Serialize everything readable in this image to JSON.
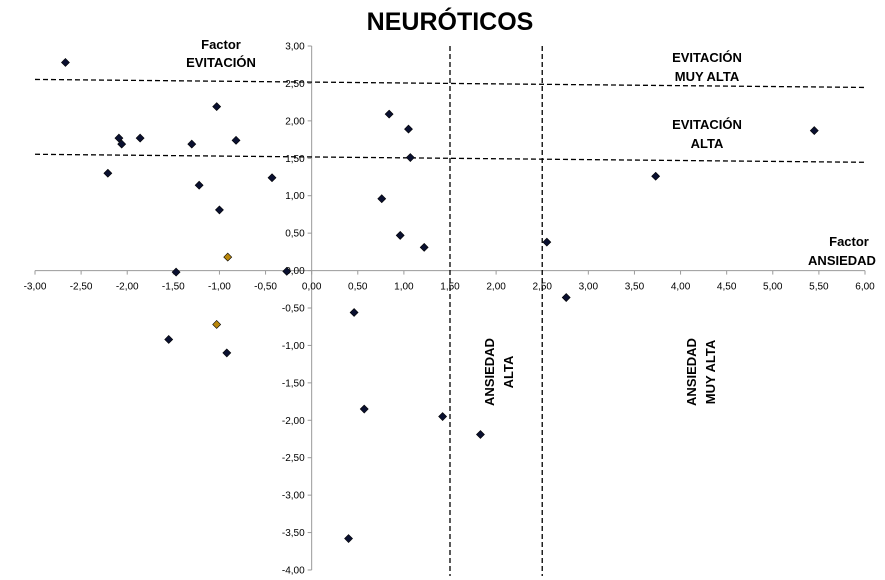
{
  "chart_data": {
    "type": "scatter",
    "title": "NEURÓTICOS",
    "xlim": [
      -3.0,
      6.0
    ],
    "ylim": [
      -4.0,
      3.0
    ],
    "x_ticks": [
      "-3,00",
      "-2,50",
      "-2,00",
      "-1,50",
      "-1,00",
      "-0,50",
      "0,00",
      "0,50",
      "1,00",
      "1,50",
      "2,00",
      "2,50",
      "3,00",
      "3,50",
      "4,00",
      "4,50",
      "5,00",
      "5,50",
      "6,00"
    ],
    "y_ticks": [
      "3,00",
      "2,50",
      "2,00",
      "1,50",
      "1,00",
      "0,50",
      "0,00",
      "-0,50",
      "-1,00",
      "-1,50",
      "-2,00",
      "-2,50",
      "-3,00",
      "-3,50",
      "-4,00"
    ],
    "grid": false,
    "reference_lines": {
      "horizontal": [
        1.5,
        2.5
      ],
      "vertical": [
        1.5,
        2.5
      ]
    },
    "annotations": {
      "x_axis_label": [
        "Factor",
        "ANSIEDAD"
      ],
      "y_axis_label": [
        "Factor",
        "EVITACIÓN"
      ],
      "avoidance_very_high": [
        "EVITACIÓN",
        "MUY ALTA"
      ],
      "avoidance_high": [
        "EVITACIÓN",
        "ALTA"
      ],
      "anxiety_high": [
        "ANSIEDAD",
        "ALTA"
      ],
      "anxiety_very_high": [
        "ANSIEDAD",
        "MUY ALTA"
      ]
    },
    "colors": {
      "marker": "#0a1030",
      "highlight_marker": "#b8860b",
      "reference_line": "#000000",
      "axis": "#9a9a9a"
    },
    "points": [
      {
        "x": -2.67,
        "y": 2.78
      },
      {
        "x": -2.09,
        "y": 1.77
      },
      {
        "x": -2.06,
        "y": 1.69
      },
      {
        "x": -1.86,
        "y": 1.77
      },
      {
        "x": -2.21,
        "y": 1.3
      },
      {
        "x": -1.3,
        "y": 1.69
      },
      {
        "x": -1.03,
        "y": 2.19
      },
      {
        "x": -0.82,
        "y": 1.74
      },
      {
        "x": -1.22,
        "y": 1.14
      },
      {
        "x": -1.0,
        "y": 0.81
      },
      {
        "x": -0.43,
        "y": 1.24
      },
      {
        "x": -0.91,
        "y": 0.18,
        "highlight": true
      },
      {
        "x": -1.47,
        "y": -0.02
      },
      {
        "x": -0.27,
        "y": -0.01
      },
      {
        "x": -1.03,
        "y": -0.72,
        "highlight": true
      },
      {
        "x": -1.55,
        "y": -0.92
      },
      {
        "x": -0.92,
        "y": -1.1
      },
      {
        "x": 0.84,
        "y": 2.09
      },
      {
        "x": 1.05,
        "y": 1.89
      },
      {
        "x": 1.07,
        "y": 1.51
      },
      {
        "x": 0.76,
        "y": 0.96
      },
      {
        "x": 0.96,
        "y": 0.47
      },
      {
        "x": 1.22,
        "y": 0.31
      },
      {
        "x": 0.46,
        "y": -0.56
      },
      {
        "x": 0.57,
        "y": -1.85
      },
      {
        "x": 1.42,
        "y": -1.95
      },
      {
        "x": 1.83,
        "y": -2.19
      },
      {
        "x": 0.4,
        "y": -3.58
      },
      {
        "x": 2.55,
        "y": 0.38
      },
      {
        "x": 2.76,
        "y": -0.36
      },
      {
        "x": 3.73,
        "y": 1.26
      },
      {
        "x": 5.45,
        "y": 1.87
      }
    ]
  }
}
